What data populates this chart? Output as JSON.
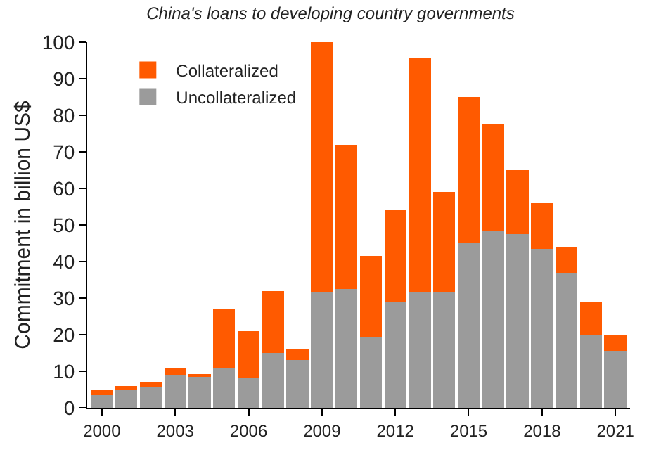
{
  "chart_data": {
    "type": "bar",
    "title": "China's loans to developing country governments",
    "ylabel": "Commitment in billion US$",
    "stacked": true,
    "legend": "top left",
    "x": [
      2000,
      2001,
      2002,
      2003,
      2004,
      2005,
      2006,
      2007,
      2008,
      2009,
      2010,
      2011,
      2012,
      2013,
      2014,
      2015,
      2016,
      2017,
      2018,
      2019,
      2020,
      2021
    ],
    "xlim": [
      1999.4,
      2021.6
    ],
    "xticks": [
      2000,
      2003,
      2006,
      2009,
      2012,
      2015,
      2018,
      2021
    ],
    "ylim": [
      0,
      100
    ],
    "yticks": [
      0,
      10,
      20,
      30,
      40,
      50,
      60,
      70,
      80,
      90,
      100
    ],
    "series": [
      {
        "name": "Uncollateralized",
        "color": "#9b9b9b",
        "values": [
          3.5,
          5,
          5.5,
          9,
          8.5,
          11,
          8,
          15,
          13,
          31.5,
          32.5,
          19.5,
          29,
          31.5,
          31.5,
          45,
          48.5,
          47.5,
          43.5,
          37,
          20,
          15.5
        ]
      },
      {
        "name": "Collateralized",
        "color": "#ff5a00",
        "values": [
          1.5,
          1,
          1.5,
          2,
          0.5,
          16,
          13,
          17,
          3,
          68.5,
          39.5,
          22,
          25,
          64,
          27.5,
          40,
          29,
          17.5,
          12.5,
          7,
          9,
          4.5
        ]
      }
    ]
  }
}
